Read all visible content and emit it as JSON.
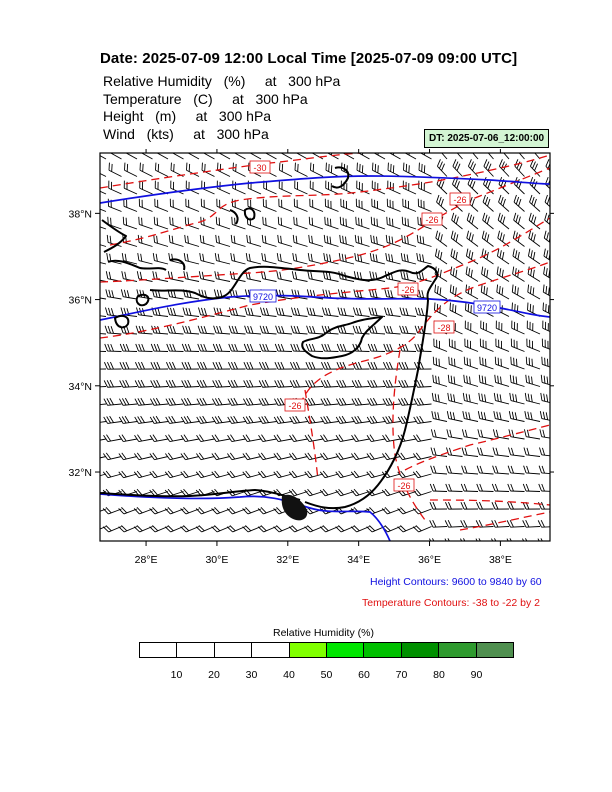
{
  "header": {
    "title": "Date: 2025-07-09  12:00 Local Time [2025-07-09  09:00 UTC]",
    "params": [
      "Relative Humidity   (%)     at   300 hPa",
      "Temperature   (C)     at   300 hPa",
      "Height   (m)     at   300 hPa",
      "Wind   (kts)     at   300 hPa"
    ],
    "dt_label": "DT: 2025-07-06_12:00:00"
  },
  "map": {
    "lon_labels": [
      "28°E",
      "30°E",
      "32°E",
      "34°E",
      "36°E",
      "38°E"
    ],
    "lat_labels": [
      "38°N",
      "36°N",
      "34°N",
      "32°N"
    ],
    "lon_range": [
      26.7,
      39.4
    ],
    "lat_range": [
      30.4,
      39.4
    ],
    "height_contour_labels": [
      "9720",
      "9720"
    ],
    "temperature_contour_labels": [
      "-30",
      "-26",
      "-26",
      "-26",
      "-28",
      "-26",
      "-26"
    ],
    "colors": {
      "height_contour": "#1010e0",
      "temperature_contour": "#e01010",
      "coastline": "#000000",
      "wind_barb": "#000000"
    }
  },
  "notes": {
    "height": "Height Contours: 9600 to 9840 by 60",
    "temperature": "Temperature Contours: -38 to -22 by 2"
  },
  "colorbar": {
    "title": "Relative Humidity  (%)",
    "labels": [
      "10",
      "20",
      "30",
      "40",
      "50",
      "60",
      "70",
      "80",
      "90"
    ],
    "colors": [
      "#ffffff",
      "#ffffff",
      "#ffffff",
      "#ffffff",
      "#80ff00",
      "#00e600",
      "#00c000",
      "#009000",
      "#2e9a2e",
      "#4f8f4f"
    ]
  }
}
